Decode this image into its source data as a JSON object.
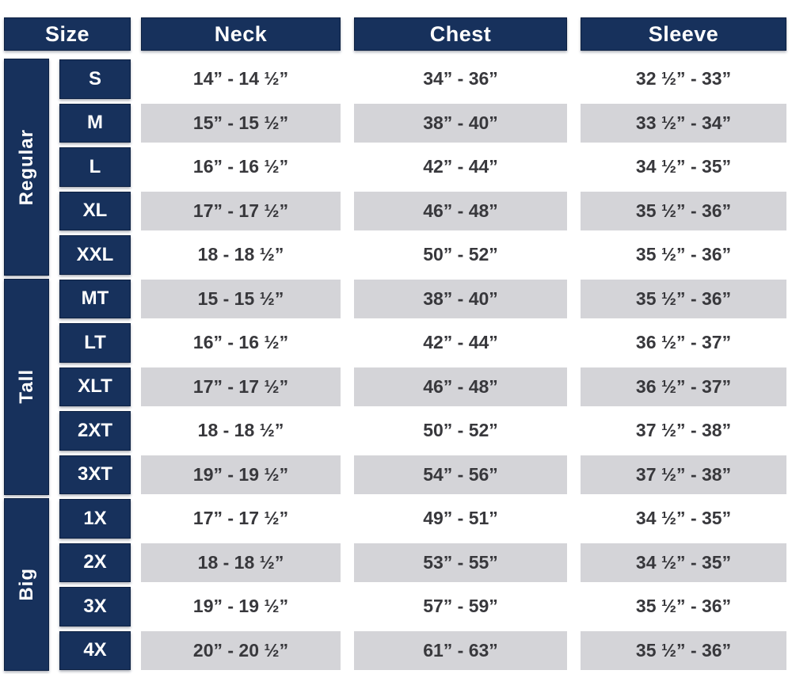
{
  "colors": {
    "navy": "#17315c",
    "row_shade": "#d4d4d8",
    "text": "#38383c",
    "header_text": "#ffffff"
  },
  "header": {
    "size": "Size",
    "neck": "Neck",
    "chest": "Chest",
    "sleeve": "Sleeve"
  },
  "groups": [
    {
      "label": "Regular",
      "rows": [
        {
          "size": "S",
          "neck": "14” - 14 ½”",
          "chest": "34” - 36”",
          "sleeve": "32 ½” - 33”"
        },
        {
          "size": "M",
          "neck": "15” - 15 ½”",
          "chest": "38” - 40”",
          "sleeve": "33 ½” - 34”"
        },
        {
          "size": "L",
          "neck": "16” - 16 ½”",
          "chest": "42” - 44”",
          "sleeve": "34 ½” - 35”"
        },
        {
          "size": "XL",
          "neck": "17” - 17 ½”",
          "chest": "46” - 48”",
          "sleeve": "35 ½” - 36”"
        },
        {
          "size": "XXL",
          "neck": "18 - 18 ½”",
          "chest": "50” - 52”",
          "sleeve": "35 ½” - 36”"
        }
      ]
    },
    {
      "label": "Tall",
      "rows": [
        {
          "size": "MT",
          "neck": "15 - 15 ½”",
          "chest": "38” - 40”",
          "sleeve": "35 ½” - 36”"
        },
        {
          "size": "LT",
          "neck": "16” - 16 ½”",
          "chest": "42” - 44”",
          "sleeve": "36 ½” - 37”"
        },
        {
          "size": "XLT",
          "neck": "17” - 17 ½”",
          "chest": "46” - 48”",
          "sleeve": "36 ½” - 37”"
        },
        {
          "size": "2XT",
          "neck": "18 - 18 ½”",
          "chest": "50” - 52”",
          "sleeve": "37 ½” - 38”"
        },
        {
          "size": "3XT",
          "neck": "19” - 19 ½”",
          "chest": "54” - 56”",
          "sleeve": "37 ½” - 38”"
        }
      ]
    },
    {
      "label": "Big",
      "rows": [
        {
          "size": "1X",
          "neck": "17” - 17 ½”",
          "chest": "49” - 51”",
          "sleeve": "34 ½” - 35”"
        },
        {
          "size": "2X",
          "neck": "18 - 18 ½”",
          "chest": "53” - 55”",
          "sleeve": "34 ½” - 35”"
        },
        {
          "size": "3X",
          "neck": "19” - 19 ½”",
          "chest": "57” - 59”",
          "sleeve": "35 ½” - 36”"
        },
        {
          "size": "4X",
          "neck": "20” - 20 ½”",
          "chest": "61” - 63”",
          "sleeve": "35 ½” - 36”"
        }
      ]
    }
  ]
}
